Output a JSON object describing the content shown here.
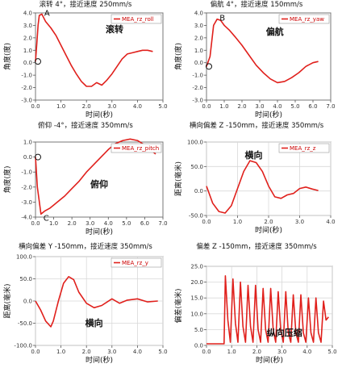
{
  "chart_data": [
    {
      "id": "p1",
      "type": "line",
      "title": "滚转 4°，接近速度 250mm/s",
      "xlabel": "时间(秒)",
      "ylabel": "角度(度)",
      "xlim": [
        0,
        5
      ],
      "ylim": [
        -3,
        4
      ],
      "xticks": [
        0,
        1,
        2,
        3,
        4,
        5
      ],
      "xtick_labels": [
        "0.0",
        "1.0",
        "2.0",
        "3.0",
        "4.0",
        "5.0"
      ],
      "yticks": [
        -3,
        -2,
        -1,
        0,
        1,
        2,
        3,
        4
      ],
      "ytick_labels": [
        "-3.0",
        "-2.0",
        "-1.0",
        "0.0",
        "1.0",
        "2.0",
        "3.0",
        "4.0"
      ],
      "grid": false,
      "series": [
        {
          "name": "MEA_rz_roll",
          "color": "#e0201c",
          "x": [
            0,
            0.05,
            0.1,
            0.15,
            0.25,
            0.4,
            0.6,
            0.8,
            1.0,
            1.2,
            1.4,
            1.6,
            1.8,
            2.0,
            2.2,
            2.4,
            2.6,
            2.8,
            3.0,
            3.2,
            3.4,
            3.6,
            3.8,
            4.0,
            4.2,
            4.4,
            4.6
          ],
          "y": [
            0.1,
            1.5,
            3.0,
            3.8,
            3.9,
            3.3,
            2.8,
            2.2,
            1.4,
            0.6,
            -0.2,
            -0.9,
            -1.5,
            -1.9,
            -1.9,
            -1.6,
            -1.8,
            -1.4,
            -0.9,
            -0.3,
            0.3,
            0.7,
            0.8,
            0.9,
            1.0,
            1.0,
            0.9
          ]
        }
      ],
      "annotation": "滚转",
      "point_labels": [
        {
          "text": "A",
          "x": 0.25,
          "y": 3.9
        },
        {
          "text": "O",
          "x": 0.0,
          "y": 0.1
        }
      ]
    },
    {
      "id": "p2",
      "type": "line",
      "title": "偏航 4°，接近速度 150mm/s",
      "xlabel": "时间(秒)",
      "ylabel": "角度(度)",
      "xlim": [
        0,
        7
      ],
      "ylim": [
        -3,
        4
      ],
      "xticks": [
        0,
        1,
        2,
        3,
        4,
        5,
        6,
        7
      ],
      "xtick_labels": [
        "0.0",
        "1.0",
        "2.0",
        "3.0",
        "4.0",
        "5.0",
        "6.0",
        "7.0"
      ],
      "yticks": [
        -3,
        -2,
        -1,
        0,
        1,
        2,
        3,
        4
      ],
      "ytick_labels": [
        "-3.0",
        "-2.0",
        "-1.0",
        "0.0",
        "1.0",
        "2.0",
        "3.0",
        "4.0"
      ],
      "grid": false,
      "series": [
        {
          "name": "MEA_rz_yaw",
          "color": "#e0201c",
          "x": [
            0,
            0.2,
            0.4,
            0.6,
            0.8,
            1.0,
            1.3,
            1.6,
            2.0,
            2.4,
            2.8,
            3.2,
            3.6,
            4.0,
            4.4,
            4.8,
            5.2,
            5.6,
            6.0,
            6.3
          ],
          "y": [
            -0.3,
            0.5,
            3.0,
            3.5,
            3.4,
            3.0,
            2.6,
            2.1,
            1.4,
            0.6,
            -0.2,
            -0.8,
            -1.3,
            -1.6,
            -1.5,
            -1.2,
            -0.8,
            -0.3,
            0.0,
            0.1
          ]
        }
      ],
      "annotation": "偏航",
      "point_labels": [
        {
          "text": "B",
          "x": 0.6,
          "y": 3.5
        },
        {
          "text": "O",
          "x": 0.0,
          "y": -0.3
        }
      ]
    },
    {
      "id": "p3",
      "type": "line",
      "title": "俯仰 -4°，接近速度 350mm/s",
      "xlabel": "时间(秒)",
      "ylabel": "角度(度)",
      "xlim": [
        0,
        7
      ],
      "ylim": [
        -4,
        1
      ],
      "xticks": [
        0,
        1,
        2,
        3,
        4,
        5,
        6,
        7
      ],
      "xtick_labels": [
        "0.0",
        "1.0",
        "2.0",
        "3.0",
        "4.0",
        "5.0",
        "6.0",
        "7.0"
      ],
      "yticks": [
        -4,
        -3,
        -2,
        -1,
        0,
        1
      ],
      "ytick_labels": [
        "-4.0",
        "-3.0",
        "-2.0",
        "-1.0",
        "0.0",
        "1.0"
      ],
      "grid": false,
      "series": [
        {
          "name": "MEA_rz_pitch",
          "color": "#e0201c",
          "x": [
            0,
            0.1,
            0.3,
            0.5,
            0.8,
            1.2,
            1.6,
            2.0,
            2.4,
            2.8,
            3.2,
            3.6,
            4.0,
            4.4,
            4.8,
            5.2,
            5.6,
            6.0,
            6.4,
            6.6
          ],
          "y": [
            0.0,
            -2.0,
            -3.8,
            -3.6,
            -3.4,
            -3.0,
            -2.6,
            -2.1,
            -1.6,
            -1.0,
            -0.5,
            0.0,
            0.5,
            0.9,
            1.1,
            1.2,
            1.1,
            0.8,
            0.4,
            0.2
          ]
        }
      ],
      "annotation": "俯仰",
      "point_labels": [
        {
          "text": "O",
          "x": 0.0,
          "y": 0.0
        },
        {
          "text": "C",
          "x": 0.3,
          "y": -3.8
        }
      ]
    },
    {
      "id": "p4",
      "type": "line",
      "title": "横向偏差 Z -150mm，接近速度 350mm/s",
      "xlabel": "时间(秒)",
      "ylabel": "距离(毫米)",
      "xlim": [
        0,
        4
      ],
      "ylim": [
        -50,
        100
      ],
      "xticks": [
        0,
        1,
        2,
        3,
        4
      ],
      "xtick_labels": [
        "0.0",
        "1.0",
        "2.0",
        "3.0",
        "4.0"
      ],
      "yticks": [
        -50,
        0,
        50,
        100
      ],
      "ytick_labels": [
        "-50.0",
        "0.0",
        "50.0",
        "100.0"
      ],
      "grid": true,
      "series": [
        {
          "name": "MEA_rz_z",
          "color": "#e0201c",
          "x": [
            0,
            0.2,
            0.4,
            0.6,
            0.8,
            1.0,
            1.2,
            1.4,
            1.6,
            1.8,
            2.0,
            2.2,
            2.4,
            2.6,
            2.8,
            3.0,
            3.2,
            3.4,
            3.6
          ],
          "y": [
            10,
            -25,
            -42,
            -45,
            -30,
            5,
            40,
            62,
            58,
            40,
            10,
            -12,
            -15,
            -8,
            -5,
            5,
            8,
            4,
            1
          ]
        }
      ],
      "annotation": "横向"
    },
    {
      "id": "p5",
      "type": "line",
      "title": "横向偏差 Y -150mm，接近速度 350mm/s",
      "xlabel": "时间(秒)",
      "ylabel": "距离(毫米)",
      "xlim": [
        0,
        5
      ],
      "ylim": [
        -100,
        100
      ],
      "xticks": [
        0,
        1,
        2,
        3,
        4,
        5
      ],
      "xtick_labels": [
        "0.0",
        "1.0",
        "2.0",
        "3.0",
        "4.0",
        "5.0"
      ],
      "yticks": [
        -100,
        -50,
        0,
        50,
        100
      ],
      "ytick_labels": [
        "-100.0",
        "-50.0",
        "0.0",
        "50.0",
        "100.0"
      ],
      "grid": true,
      "series": [
        {
          "name": "MEA_rz_y",
          "color": "#e0201c",
          "x": [
            0,
            0.2,
            0.4,
            0.6,
            0.7,
            0.9,
            1.1,
            1.3,
            1.5,
            1.7,
            2.0,
            2.3,
            2.6,
            3.0,
            3.3,
            3.6,
            4.0,
            4.4,
            4.8
          ],
          "y": [
            0,
            -20,
            -45,
            -58,
            -45,
            0,
            40,
            55,
            48,
            20,
            -5,
            -15,
            -10,
            5,
            -5,
            2,
            5,
            -2,
            0
          ]
        }
      ],
      "annotation": "横向"
    },
    {
      "id": "p6",
      "type": "line",
      "title": "偏差 Z -150mm，接近速度 350mm/s",
      "xlabel": "时间(秒)",
      "ylabel": "偏差(毫米)",
      "xlim": [
        0,
        5
      ],
      "ylim": [
        0,
        25
      ],
      "xticks": [
        0,
        1,
        2,
        3,
        4,
        5
      ],
      "xtick_labels": [
        "0.0",
        "1.0",
        "2.0",
        "3.0",
        "4.0",
        "5.0"
      ],
      "yticks": [
        0,
        5,
        10,
        15,
        20,
        25
      ],
      "ytick_labels": [
        "0.0",
        "5.0",
        "10.0",
        "15.0",
        "20.0",
        "25.0"
      ],
      "grid": true,
      "series": [
        {
          "name": "",
          "color": "#e0201c",
          "x": [
            0,
            0.7,
            0.75,
            0.85,
            0.95,
            1.05,
            1.15,
            1.25,
            1.35,
            1.45,
            1.55,
            1.65,
            1.75,
            1.85,
            1.95,
            2.05,
            2.15,
            2.25,
            2.35,
            2.45,
            2.55,
            2.65,
            2.75,
            2.85,
            2.95,
            3.05,
            3.15,
            3.25,
            3.35,
            3.45,
            3.55,
            3.65,
            3.75,
            3.85,
            3.95,
            4.05,
            4.15,
            4.25,
            4.35,
            4.45,
            4.55,
            4.65,
            4.75,
            4.85
          ],
          "y": [
            0.5,
            0.5,
            22,
            8,
            1,
            21,
            7,
            1,
            20,
            6,
            1,
            19,
            6,
            1,
            19,
            5,
            1,
            18,
            5,
            1,
            18,
            5,
            1,
            17,
            5,
            1,
            17,
            4,
            1,
            16,
            4,
            1,
            16,
            4,
            1,
            15,
            4,
            1,
            15,
            4,
            1,
            14,
            8,
            9
          ]
        }
      ],
      "annotation": "纵向压缩"
    }
  ]
}
